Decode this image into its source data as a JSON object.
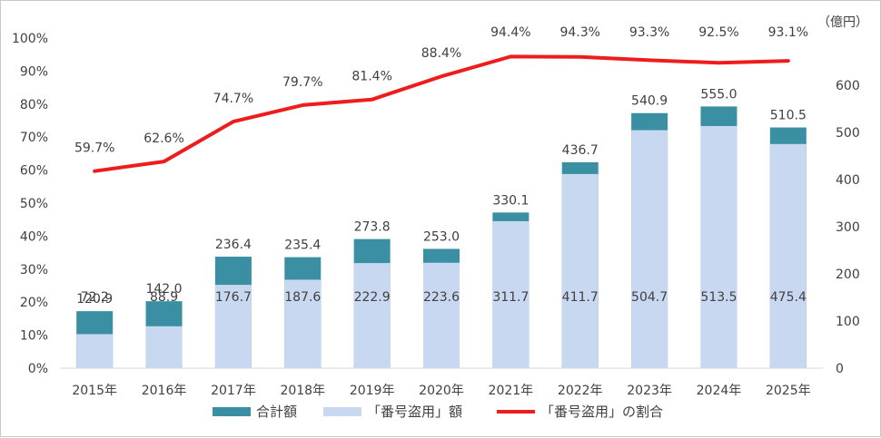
{
  "chart_data": {
    "type": "bar",
    "stacked": true,
    "secondary_line": true,
    "categories": [
      "2015年",
      "2016年",
      "2017年",
      "2018年",
      "2019年",
      "2020年",
      "2021年",
      "2022年",
      "2023年",
      "2024年",
      "2025年"
    ],
    "series": [
      {
        "name": "合計額",
        "type": "bar",
        "axis": "right",
        "color": "#3a8fa3",
        "values": [
          120.9,
          142.0,
          236.4,
          235.4,
          273.8,
          253.0,
          330.1,
          436.7,
          540.9,
          555.0,
          510.5
        ],
        "labels": [
          "120.9",
          "142.0",
          "236.4",
          "235.4",
          "273.8",
          "253.0",
          "330.1",
          "436.7",
          "540.9",
          "555.0",
          "510.5"
        ]
      },
      {
        "name": "「番号盗用」額",
        "type": "bar",
        "axis": "right",
        "color": "#c9d8f1",
        "values": [
          72.2,
          88.9,
          176.7,
          187.6,
          222.9,
          223.6,
          311.7,
          411.7,
          504.7,
          513.5,
          475.4
        ],
        "labels": [
          "72.2",
          "88.9",
          "176.7",
          "187.6",
          "222.9",
          "223.6",
          "311.7",
          "411.7",
          "504.7",
          "513.5",
          "475.4"
        ]
      },
      {
        "name": "「番号盗用」の割合",
        "type": "line",
        "axis": "left",
        "color": "#ee1c1c",
        "values": [
          59.7,
          62.6,
          74.7,
          79.7,
          81.4,
          88.4,
          94.4,
          94.3,
          93.3,
          92.5,
          93.1
        ],
        "labels": [
          "59.7%",
          "62.6%",
          "74.7%",
          "79.7%",
          "81.4%",
          "88.4%",
          "94.4%",
          "94.3%",
          "93.3%",
          "92.5%",
          "93.1%"
        ]
      }
    ],
    "y_left": {
      "min": 0,
      "max": 100,
      "step": 10,
      "ticks": [
        "0%",
        "10%",
        "20%",
        "30%",
        "40%",
        "50%",
        "60%",
        "70%",
        "80%",
        "90%",
        "100%"
      ]
    },
    "y_right": {
      "min": 0,
      "max": 700,
      "step": 100,
      "unit": "（億円）",
      "ticks": [
        "0",
        "100",
        "200",
        "300",
        "400",
        "500",
        "600"
      ]
    },
    "legend": {
      "placement": "bottom"
    }
  }
}
